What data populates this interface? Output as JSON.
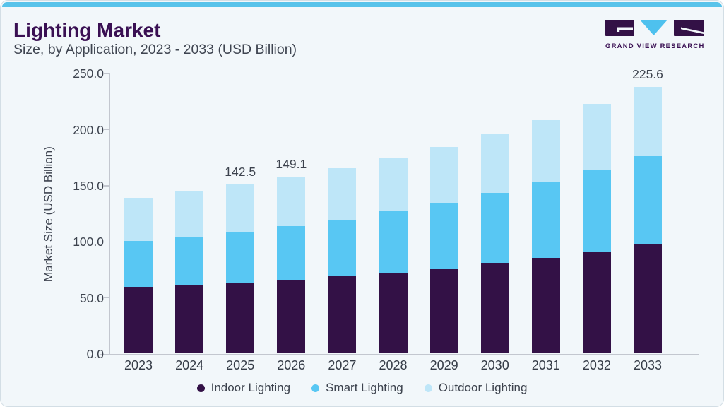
{
  "header": {
    "title": "Lighting Market",
    "subtitle": "Size, by Application, 2023 - 2033 (USD Billion)"
  },
  "logo": {
    "text": "GRAND VIEW RESEARCH"
  },
  "colors": {
    "accent_strip": "#58c3ea",
    "brand_purple": "#3a1053",
    "indoor": "#331146",
    "smart": "#58c7f3",
    "outdoor": "#bee6f8",
    "text": "#3d434e",
    "axis_line": "#c3c7cf",
    "card_background": "#f2f7fa"
  },
  "chart_data": {
    "type": "bar",
    "stacked": true,
    "title": "Lighting Market Size, by Application, 2023 - 2033 (USD Billion)",
    "categories": [
      "2023",
      "2024",
      "2025",
      "2026",
      "2027",
      "2028",
      "2029",
      "2030",
      "2031",
      "2032",
      "2033"
    ],
    "series": [
      {
        "name": "Indoor Lighting",
        "color": "#331146",
        "values": [
          55.5,
          57.3,
          59.0,
          61.9,
          64.9,
          68.0,
          71.5,
          76.0,
          80.3,
          85.9,
          91.5
        ]
      },
      {
        "name": "Smart Lighting",
        "color": "#58c7f3",
        "values": [
          39.0,
          40.9,
          43.5,
          45.6,
          48.0,
          52.0,
          55.4,
          59.3,
          64.2,
          69.4,
          75.0
        ]
      },
      {
        "name": "Outdoor Lighting",
        "color": "#bee6f8",
        "values": [
          36.8,
          38.4,
          40.0,
          41.6,
          43.8,
          45.0,
          47.4,
          50.0,
          52.7,
          55.6,
          59.1
        ]
      }
    ],
    "totals": [
      131.3,
      136.6,
      142.5,
      149.1,
      156.7,
      165.0,
      174.3,
      185.3,
      197.2,
      210.9,
      225.6
    ],
    "bar_labels": [
      null,
      null,
      "142.5",
      "149.1",
      null,
      null,
      null,
      null,
      null,
      null,
      "225.6"
    ],
    "ylabel": "Market Size (USD Billion)",
    "xlabel": "",
    "ylim": [
      0,
      250
    ],
    "ytick_step": 50,
    "ytick_decimals": 1,
    "grid": false,
    "legend_position": "bottom"
  }
}
